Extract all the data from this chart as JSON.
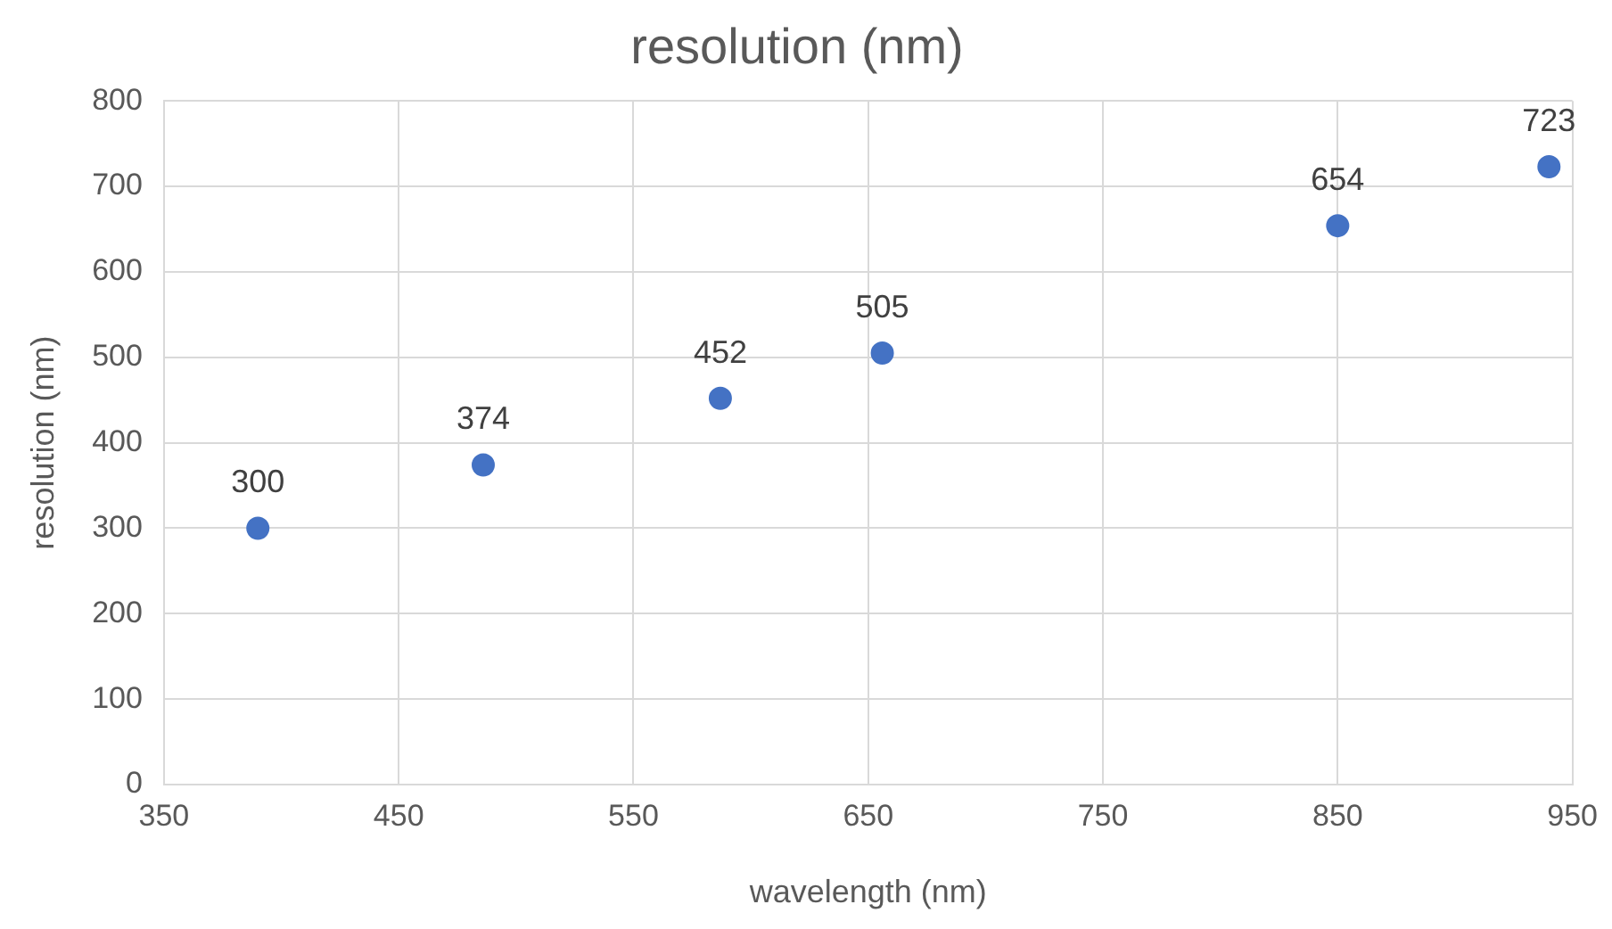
{
  "chart_data": {
    "type": "scatter",
    "title": "resolution (nm)",
    "xlabel": "wavelength (nm)",
    "ylabel": "resolution (nm)",
    "x": [
      390,
      486,
      587,
      656,
      850,
      940
    ],
    "series": [
      {
        "color": "#4472c4",
        "values": [
          300,
          374,
          452,
          505,
          654,
          723
        ]
      }
    ],
    "xlim": [
      350,
      950
    ],
    "xticks": [
      350,
      450,
      550,
      650,
      750,
      850,
      950
    ],
    "ylim": [
      0,
      800
    ],
    "yticks": [
      0,
      100,
      200,
      300,
      400,
      500,
      600,
      700,
      800
    ],
    "grid": true,
    "legend": false,
    "marker": "circle",
    "data_labels": true
  }
}
